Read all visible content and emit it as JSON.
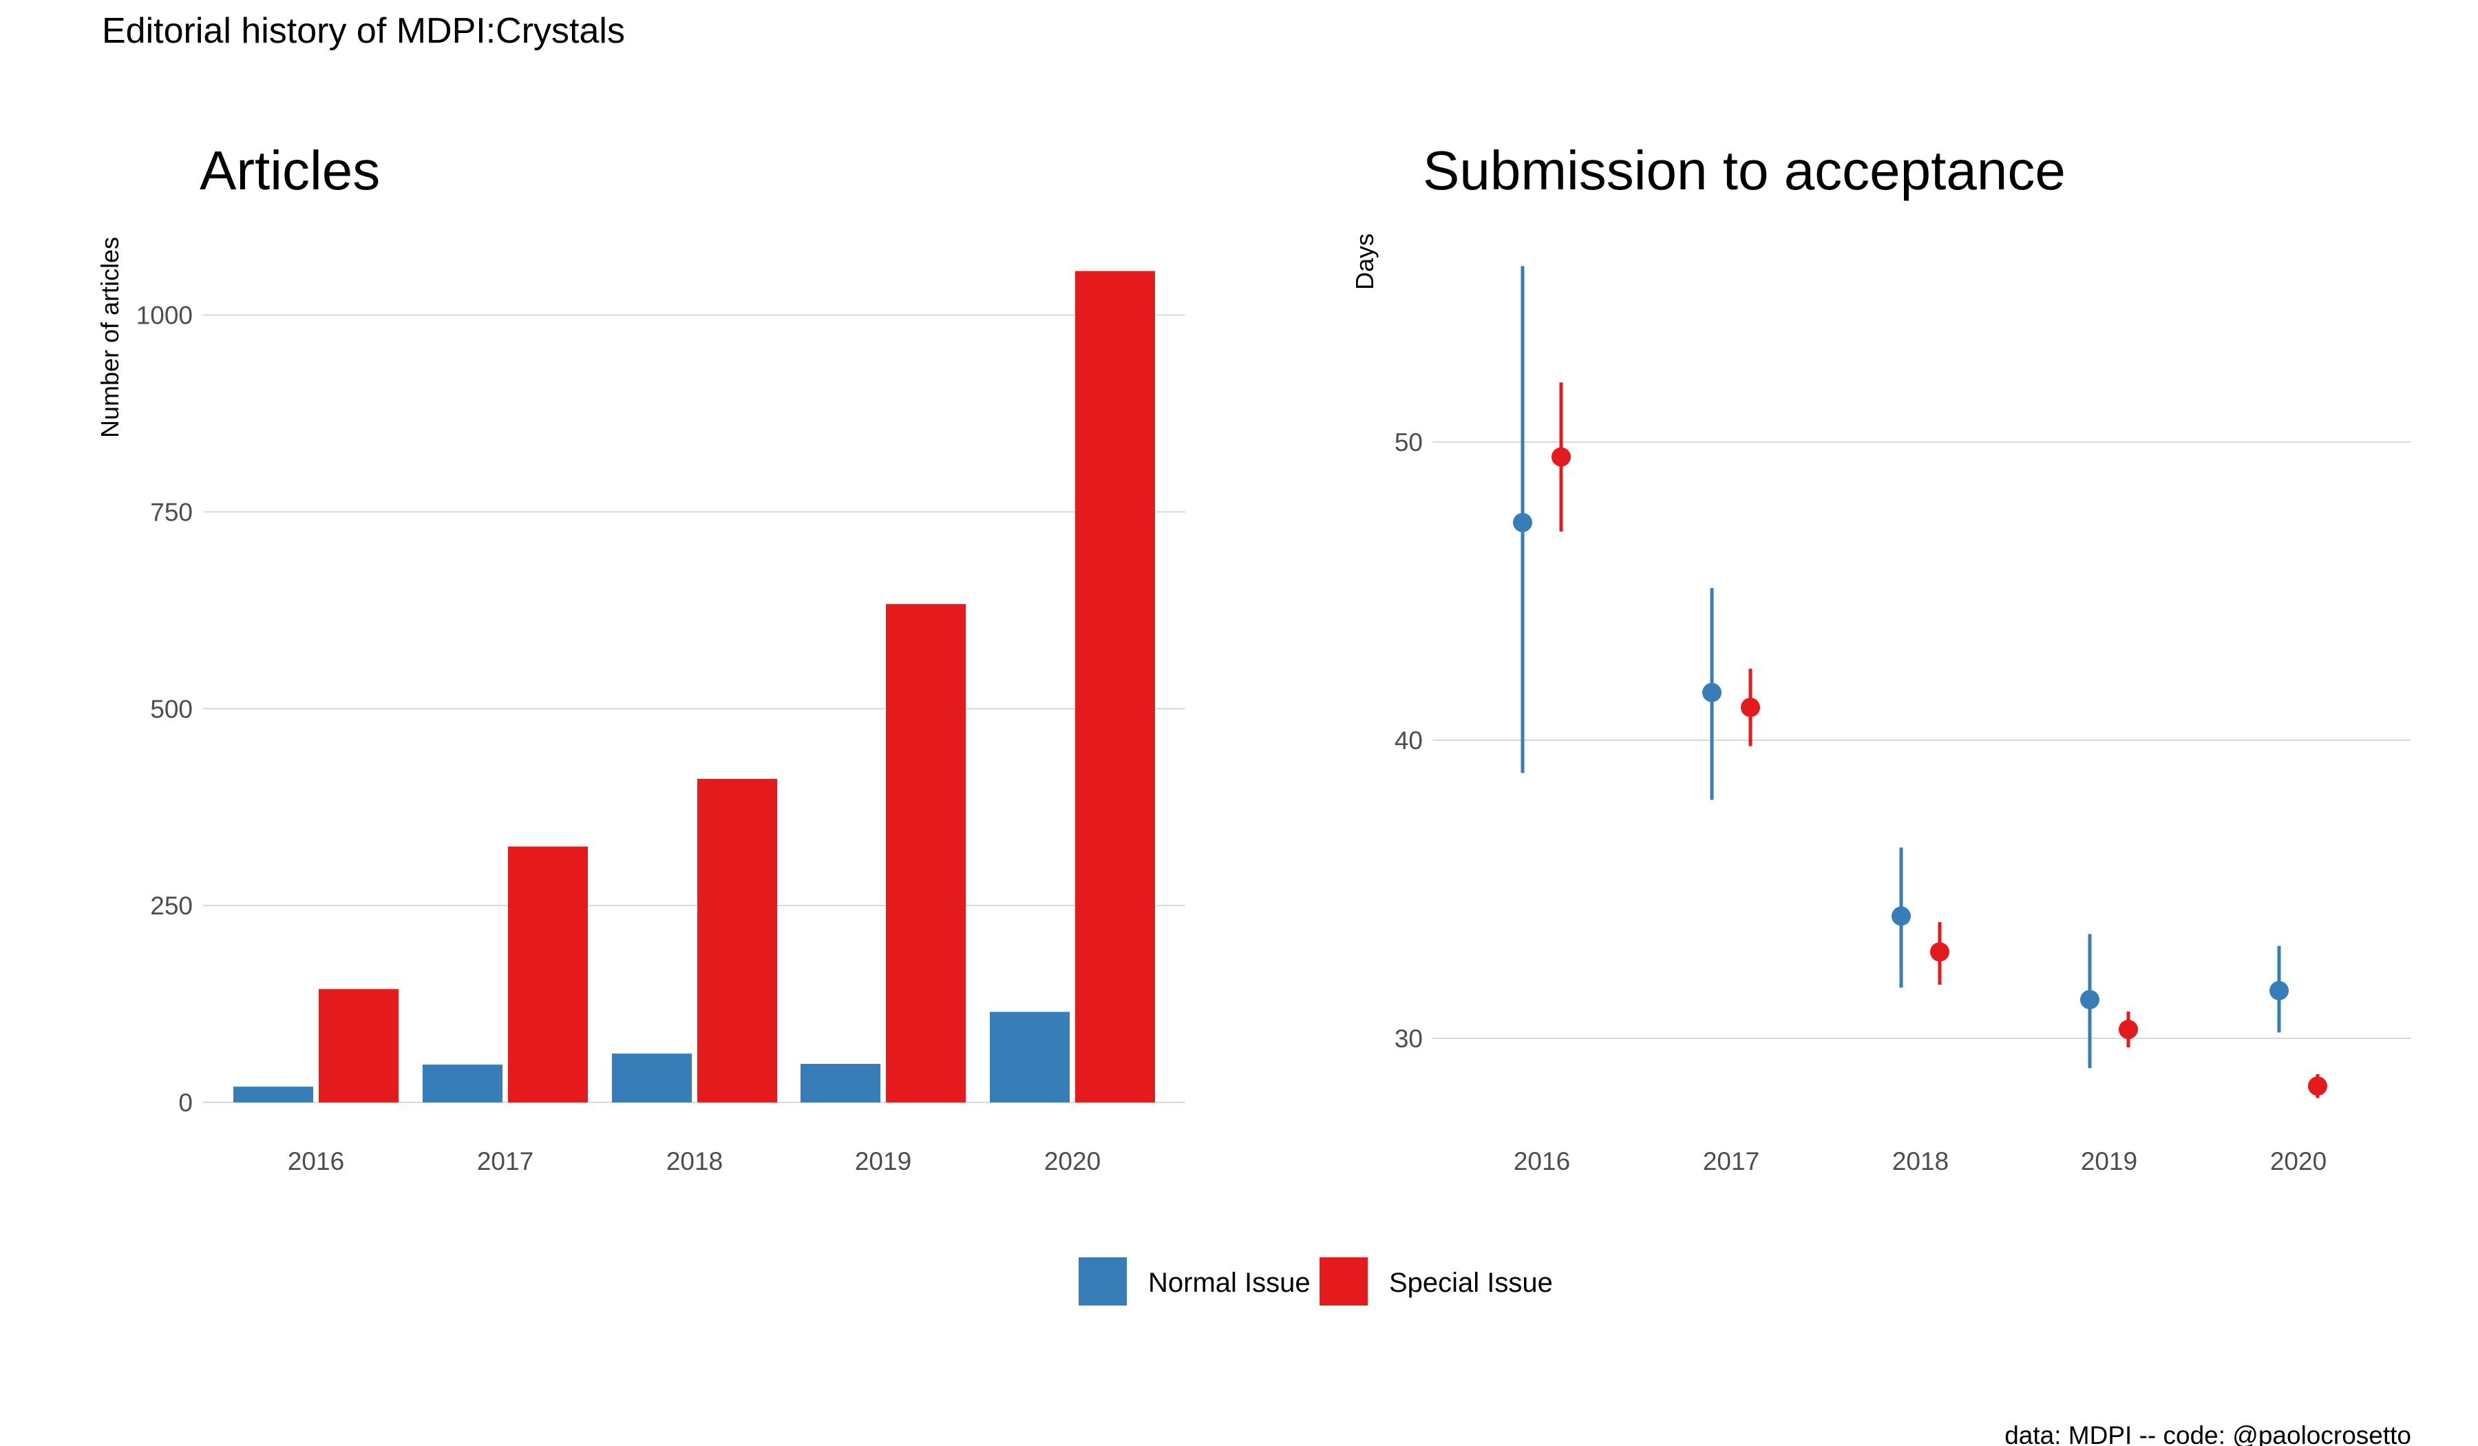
{
  "figure": {
    "title": "Editorial history of MDPI:Crystals",
    "caption": "data: MDPI -- code: @paolocrosetto"
  },
  "colors": {
    "normal": "#377EB8",
    "special": "#E41A1C",
    "grid": "#d9d9d9",
    "tick": "#4d4d4d"
  },
  "legend": {
    "placement": "bottom",
    "items": [
      {
        "label": "Normal Issue",
        "color": "#377EB8"
      },
      {
        "label": "Special Issue",
        "color": "#E41A1C"
      }
    ]
  },
  "chart_data": [
    {
      "type": "bar",
      "title": "Articles",
      "xlabel": "",
      "ylabel": "Number of articles",
      "categories": [
        "2016",
        "2017",
        "2018",
        "2019",
        "2020"
      ],
      "yticks": [
        0,
        250,
        500,
        750,
        1000
      ],
      "ylim": [
        0,
        1056
      ],
      "grid": true,
      "series": [
        {
          "name": "Normal Issue",
          "values": [
            20,
            48,
            62,
            49,
            115
          ]
        },
        {
          "name": "Special Issue",
          "values": [
            144,
            325,
            411,
            633,
            1056
          ]
        }
      ]
    },
    {
      "type": "scatter",
      "title": "Submission to acceptance",
      "xlabel": "",
      "ylabel": "Days",
      "categories": [
        "2016",
        "2017",
        "2018",
        "2019",
        "2020"
      ],
      "yticks": [
        30,
        40,
        50
      ],
      "ylim": [
        27.8,
        55.9
      ],
      "grid": true,
      "series": [
        {
          "name": "Normal Issue",
          "points": [
            {
              "x": "2016",
              "y": 47.3,
              "low": 38.9,
              "high": 55.9
            },
            {
              "x": "2017",
              "y": 41.6,
              "low": 38.0,
              "high": 45.1
            },
            {
              "x": "2018",
              "y": 34.1,
              "low": 31.7,
              "high": 36.4
            },
            {
              "x": "2019",
              "y": 31.3,
              "low": 29.0,
              "high": 33.5
            },
            {
              "x": "2020",
              "y": 31.6,
              "low": 30.2,
              "high": 33.1
            }
          ]
        },
        {
          "name": "Special Issue",
          "points": [
            {
              "x": "2016",
              "y": 49.5,
              "low": 47.0,
              "high": 52.0
            },
            {
              "x": "2017",
              "y": 41.1,
              "low": 39.8,
              "high": 42.4
            },
            {
              "x": "2018",
              "y": 32.9,
              "low": 31.8,
              "high": 33.9
            },
            {
              "x": "2019",
              "y": 30.3,
              "low": 29.7,
              "high": 30.9
            },
            {
              "x": "2020",
              "y": 28.4,
              "low": 28.0,
              "high": 28.8
            }
          ]
        }
      ]
    }
  ]
}
